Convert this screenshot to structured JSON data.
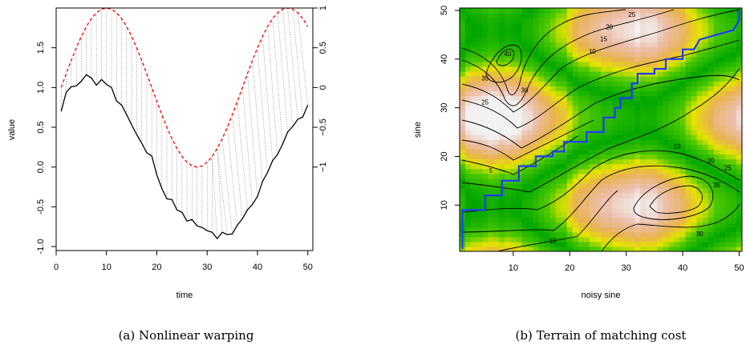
{
  "figure": {
    "caption_left": "(a) Nonlinear warping",
    "caption_right": "(b) Terrain of matching cost"
  },
  "chart_data": [
    {
      "type": "line",
      "xlabel": "time",
      "ylabel": "value",
      "xlim": [
        0,
        51
      ],
      "ylim": [
        -1.05,
        2.0
      ],
      "x_ticks": [
        0,
        10,
        20,
        30,
        40,
        50
      ],
      "y_ticks": [
        -1.0,
        -0.5,
        0.0,
        0.5,
        1.0,
        1.5
      ],
      "y2_ticks": [
        -1,
        -0.5,
        0,
        0.5,
        1
      ],
      "y2_offset": 1,
      "grid": false,
      "series": [
        {
          "line": "solid",
          "color": "#000000",
          "x": [
            1,
            2,
            3,
            4,
            5,
            6,
            7,
            8,
            9,
            10,
            11,
            12,
            13,
            14,
            15,
            16,
            17,
            18,
            19,
            20,
            21,
            22,
            23,
            24,
            25,
            26,
            27,
            28,
            29,
            30,
            31,
            32,
            33,
            34,
            35,
            36,
            37,
            38,
            39,
            40,
            41,
            42,
            43,
            44,
            45,
            46,
            47,
            48,
            49,
            50
          ],
          "y": [
            0.7,
            0.94,
            1.01,
            1.02,
            1.08,
            1.16,
            1.12,
            1.03,
            1.1,
            1.04,
            1.0,
            0.83,
            0.78,
            0.66,
            0.53,
            0.41,
            0.3,
            0.18,
            0.14,
            -0.1,
            -0.27,
            -0.4,
            -0.41,
            -0.54,
            -0.57,
            -0.68,
            -0.66,
            -0.74,
            -0.76,
            -0.8,
            -0.82,
            -0.9,
            -0.82,
            -0.85,
            -0.84,
            -0.73,
            -0.65,
            -0.54,
            -0.47,
            -0.37,
            -0.18,
            -0.07,
            0.08,
            0.16,
            0.29,
            0.44,
            0.51,
            0.6,
            0.63,
            0.78
          ]
        },
        {
          "line": "dashed",
          "color": "#ff0000",
          "axis": "right",
          "x": [
            1,
            2,
            3,
            4,
            5,
            6,
            7,
            8,
            9,
            10,
            11,
            12,
            13,
            14,
            15,
            16,
            17,
            18,
            19,
            20,
            21,
            22,
            23,
            24,
            25,
            26,
            27,
            28,
            29,
            30,
            31,
            32,
            33,
            34,
            35,
            36,
            37,
            38,
            39,
            40,
            41,
            42,
            43,
            44,
            45,
            46,
            47,
            48,
            49,
            50
          ],
          "y": [
            1.0,
            1.174,
            1.342,
            1.5,
            1.643,
            1.766,
            1.866,
            1.94,
            1.985,
            2.0,
            1.985,
            1.94,
            1.866,
            1.766,
            1.643,
            1.5,
            1.342,
            1.174,
            1.0,
            0.826,
            0.658,
            0.5,
            0.357,
            0.234,
            0.134,
            0.06,
            0.015,
            0.0,
            0.015,
            0.06,
            0.134,
            0.234,
            0.357,
            0.5,
            0.658,
            0.826,
            1.0,
            1.174,
            1.342,
            1.5,
            1.643,
            1.766,
            1.866,
            1.94,
            1.985,
            2.0,
            1.985,
            1.94,
            1.866,
            1.766
          ]
        }
      ],
      "warping_map": [
        [
          1,
          1
        ],
        [
          2,
          2
        ],
        [
          3,
          3
        ],
        [
          4,
          4
        ],
        [
          5,
          5
        ],
        [
          6,
          6
        ],
        [
          7,
          7
        ],
        [
          8,
          8
        ],
        [
          9,
          9
        ],
        [
          10,
          10
        ],
        [
          11,
          11
        ],
        [
          12,
          12
        ],
        [
          13,
          13
        ],
        [
          14,
          14
        ],
        [
          15,
          15
        ],
        [
          16,
          16
        ],
        [
          17,
          17
        ],
        [
          18,
          18
        ],
        [
          19,
          19
        ],
        [
          20,
          20
        ],
        [
          21,
          21
        ],
        [
          22,
          22
        ],
        [
          23,
          23
        ],
        [
          24,
          24
        ],
        [
          25,
          25
        ],
        [
          26,
          26
        ],
        [
          27,
          27
        ],
        [
          28,
          28
        ],
        [
          29,
          29
        ],
        [
          30,
          30
        ],
        [
          31,
          31
        ],
        [
          32,
          31
        ],
        [
          33,
          32
        ],
        [
          34,
          32
        ],
        [
          35,
          33
        ],
        [
          36,
          34
        ],
        [
          37,
          35
        ],
        [
          38,
          36
        ],
        [
          39,
          37
        ],
        [
          40,
          38
        ],
        [
          41,
          39
        ],
        [
          42,
          40
        ],
        [
          43,
          41
        ],
        [
          44,
          42
        ],
        [
          45,
          43
        ],
        [
          46,
          44
        ],
        [
          47,
          45
        ],
        [
          48,
          46
        ],
        [
          49,
          47
        ],
        [
          50,
          48
        ]
      ]
    },
    {
      "type": "heatmap",
      "xlabel": "noisy sine",
      "ylabel": "sine",
      "xlim": [
        1,
        50
      ],
      "ylim": [
        1,
        50
      ],
      "x_ticks": [
        10,
        20,
        30,
        40,
        50
      ],
      "y_ticks": [
        10,
        20,
        30,
        40,
        50
      ],
      "colormap": "terrain",
      "contour_labels": [
        {
          "text": "25",
          "x": 31,
          "y": 49
        },
        {
          "text": "20",
          "x": 27,
          "y": 46.5
        },
        {
          "text": "15",
          "x": 26,
          "y": 44
        },
        {
          "text": "10",
          "x": 24,
          "y": 41.5
        },
        {
          "text": "40",
          "x": 9,
          "y": 41
        },
        {
          "text": "35",
          "x": 5,
          "y": 36
        },
        {
          "text": "30",
          "x": 12,
          "y": 33.5
        },
        {
          "text": "25",
          "x": 5,
          "y": 31
        },
        {
          "text": "5",
          "x": 6,
          "y": 17
        },
        {
          "text": "10",
          "x": 39,
          "y": 22
        },
        {
          "text": "20",
          "x": 45,
          "y": 19
        },
        {
          "text": "25",
          "x": 48,
          "y": 17.5
        },
        {
          "text": "35",
          "x": 46,
          "y": 14
        },
        {
          "text": "30",
          "x": 43,
          "y": 4
        },
        {
          "text": "15",
          "x": 17,
          "y": 2.5
        }
      ],
      "path": [
        [
          1,
          1
        ],
        [
          1,
          9
        ],
        [
          5,
          9
        ],
        [
          5,
          12
        ],
        [
          8,
          12
        ],
        [
          8,
          15
        ],
        [
          11,
          15
        ],
        [
          11,
          18
        ],
        [
          14,
          18
        ],
        [
          14,
          20
        ],
        [
          17,
          20
        ],
        [
          17,
          21
        ],
        [
          19,
          21
        ],
        [
          19,
          23
        ],
        [
          23,
          23
        ],
        [
          23,
          25
        ],
        [
          26,
          25
        ],
        [
          26,
          28
        ],
        [
          28,
          28
        ],
        [
          28,
          30
        ],
        [
          29,
          30
        ],
        [
          29,
          32
        ],
        [
          31,
          32
        ],
        [
          31,
          35
        ],
        [
          32,
          35
        ],
        [
          32,
          37
        ],
        [
          35,
          37
        ],
        [
          35,
          38
        ],
        [
          37,
          38
        ],
        [
          37,
          40
        ],
        [
          40,
          40
        ],
        [
          40,
          42
        ],
        [
          42,
          42
        ],
        [
          43,
          44
        ],
        [
          46,
          45
        ],
        [
          49,
          46
        ],
        [
          50,
          48
        ],
        [
          50,
          50
        ]
      ]
    }
  ]
}
